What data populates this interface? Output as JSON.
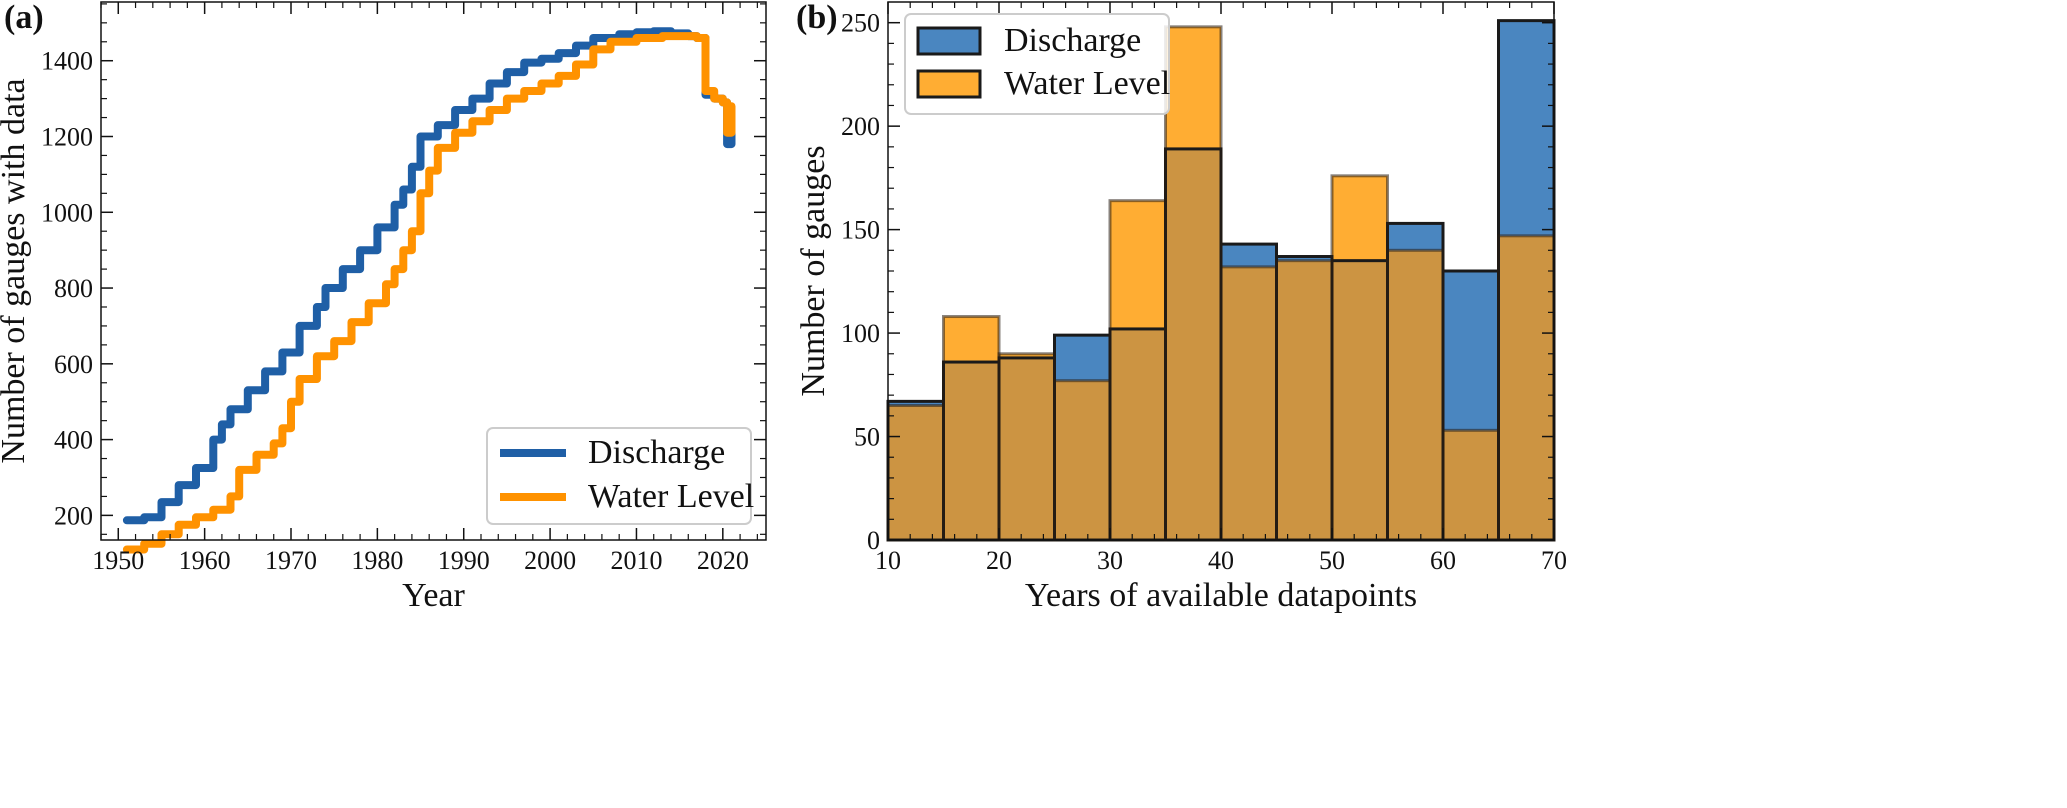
{
  "colors": {
    "discharge": "#1f5fa6",
    "water_level": "#ff9200",
    "discharge_bar": "#4a86c0",
    "water_level_bar": "#ffad33",
    "overlap_bar": "#cc9442"
  },
  "chart_data": [
    {
      "panel_label": "(a)",
      "type": "line",
      "xlabel": "Year",
      "ylabel": "Number of gauges with data",
      "xlim": [
        1948,
        2025
      ],
      "ylim": [
        135,
        1555
      ],
      "xticks": [
        1950,
        1960,
        1970,
        1980,
        1990,
        2000,
        2010,
        2020
      ],
      "yticks": [
        200,
        400,
        600,
        800,
        1000,
        1200,
        1400
      ],
      "grid": false,
      "legend_position": "lower-right",
      "series": [
        {
          "name": "Discharge",
          "color": "#1f5fa6",
          "points": [
            [
              1951,
              187
            ],
            [
              1953,
              195
            ],
            [
              1955,
              235
            ],
            [
              1957,
              280
            ],
            [
              1959,
              325
            ],
            [
              1961,
              400
            ],
            [
              1962,
              440
            ],
            [
              1963,
              480
            ],
            [
              1965,
              530
            ],
            [
              1967,
              580
            ],
            [
              1969,
              630
            ],
            [
              1971,
              700
            ],
            [
              1973,
              750
            ],
            [
              1974,
              800
            ],
            [
              1976,
              850
            ],
            [
              1978,
              900
            ],
            [
              1980,
              960
            ],
            [
              1982,
              1020
            ],
            [
              1983,
              1060
            ],
            [
              1984,
              1120
            ],
            [
              1985,
              1200
            ],
            [
              1987,
              1230
            ],
            [
              1989,
              1270
            ],
            [
              1991,
              1300
            ],
            [
              1993,
              1340
            ],
            [
              1995,
              1370
            ],
            [
              1997,
              1395
            ],
            [
              1999,
              1405
            ],
            [
              2001,
              1420
            ],
            [
              2003,
              1440
            ],
            [
              2005,
              1460
            ],
            [
              2008,
              1470
            ],
            [
              2010,
              1475
            ],
            [
              2012,
              1478
            ],
            [
              2014,
              1472
            ],
            [
              2016,
              1465
            ],
            [
              2017,
              1460
            ],
            [
              2018,
              1310
            ],
            [
              2019,
              1300
            ],
            [
              2020,
              1290
            ],
            [
              2020.5,
              1180
            ],
            [
              2021,
              1250
            ]
          ]
        },
        {
          "name": "Water Level",
          "color": "#ff9200",
          "points": [
            [
              1951,
              110
            ],
            [
              1953,
              125
            ],
            [
              1955,
              150
            ],
            [
              1957,
              175
            ],
            [
              1959,
              195
            ],
            [
              1961,
              215
            ],
            [
              1963,
              250
            ],
            [
              1964,
              320
            ],
            [
              1966,
              360
            ],
            [
              1968,
              390
            ],
            [
              1969,
              430
            ],
            [
              1970,
              500
            ],
            [
              1971,
              560
            ],
            [
              1973,
              620
            ],
            [
              1975,
              660
            ],
            [
              1977,
              710
            ],
            [
              1979,
              760
            ],
            [
              1981,
              810
            ],
            [
              1982,
              850
            ],
            [
              1983,
              900
            ],
            [
              1984,
              950
            ],
            [
              1985,
              1050
            ],
            [
              1986,
              1110
            ],
            [
              1987,
              1170
            ],
            [
              1989,
              1210
            ],
            [
              1991,
              1240
            ],
            [
              1993,
              1270
            ],
            [
              1995,
              1300
            ],
            [
              1997,
              1320
            ],
            [
              1999,
              1340
            ],
            [
              2001,
              1360
            ],
            [
              2003,
              1390
            ],
            [
              2005,
              1430
            ],
            [
              2007,
              1450
            ],
            [
              2010,
              1460
            ],
            [
              2013,
              1465
            ],
            [
              2015,
              1465
            ],
            [
              2016,
              1465
            ],
            [
              2017,
              1460
            ],
            [
              2018,
              1320
            ],
            [
              2019,
              1300
            ],
            [
              2020,
              1290
            ],
            [
              2020.5,
              1210
            ],
            [
              2021,
              1280
            ]
          ]
        }
      ]
    },
    {
      "panel_label": "(b)",
      "type": "bar",
      "xlabel": "Years of available datapoints",
      "ylabel": "Number of gauges",
      "xlim": [
        10,
        70
      ],
      "ylim": [
        0,
        260
      ],
      "xticks": [
        10,
        20,
        30,
        40,
        50,
        60,
        70
      ],
      "yticks": [
        0,
        50,
        100,
        150,
        200,
        250
      ],
      "grid": false,
      "legend_position": "top-left",
      "bin_edges": [
        10,
        15,
        20,
        25,
        30,
        35,
        40,
        45,
        50,
        55,
        60,
        65,
        70
      ],
      "series": [
        {
          "name": "Discharge",
          "color": "#4a86c0",
          "values": [
            67,
            86,
            88,
            99,
            102,
            189,
            143,
            137,
            135,
            153,
            130,
            251
          ]
        },
        {
          "name": "Water Level",
          "color": "#ffad33",
          "values": [
            65,
            108,
            90,
            77,
            164,
            248,
            132,
            135,
            176,
            140,
            53,
            147
          ]
        }
      ]
    }
  ]
}
